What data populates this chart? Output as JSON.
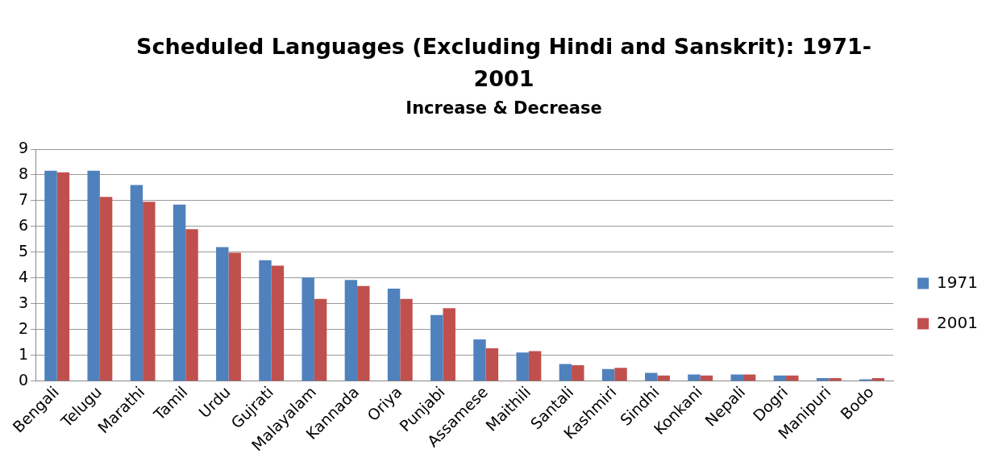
{
  "chart_data": {
    "type": "bar",
    "title": "Scheduled Languages (Excluding Hindi and Sanskrit): 1971-2001",
    "subtitle": "Increase & Decrease",
    "categories": [
      "Bengali",
      "Telugu",
      "Marathi",
      "Tamil",
      "Urdu",
      "Gujrati",
      "Malayalam",
      "Kannada",
      "Oriya",
      "Punjabi",
      "Assamese",
      "Maithili",
      "Santali",
      "Kashmiri",
      "Sindhi",
      "Konkani",
      "Nepali",
      "Dogri",
      "Manipuri",
      "Bodo"
    ],
    "series": [
      {
        "name": "1971",
        "color": "#4f81bd",
        "values": [
          8.16,
          8.16,
          7.61,
          6.85,
          5.2,
          4.69,
          4.02,
          3.93,
          3.59,
          2.57,
          1.62,
          1.11,
          0.67,
          0.47,
          0.32,
          0.26,
          0.26,
          0.22,
          0.12,
          0.07
        ]
      },
      {
        "name": "2001",
        "color": "#c0504d",
        "values": [
          8.1,
          7.15,
          6.96,
          5.9,
          4.98,
          4.48,
          3.19,
          3.69,
          3.19,
          2.83,
          1.28,
          1.17,
          0.62,
          0.52,
          0.22,
          0.22,
          0.26,
          0.22,
          0.12,
          0.12
        ]
      }
    ],
    "ylim": [
      0,
      9
    ],
    "yticks": [
      0,
      1,
      2,
      3,
      4,
      5,
      6,
      7,
      8,
      9
    ],
    "grid": "y",
    "legend": "right"
  }
}
